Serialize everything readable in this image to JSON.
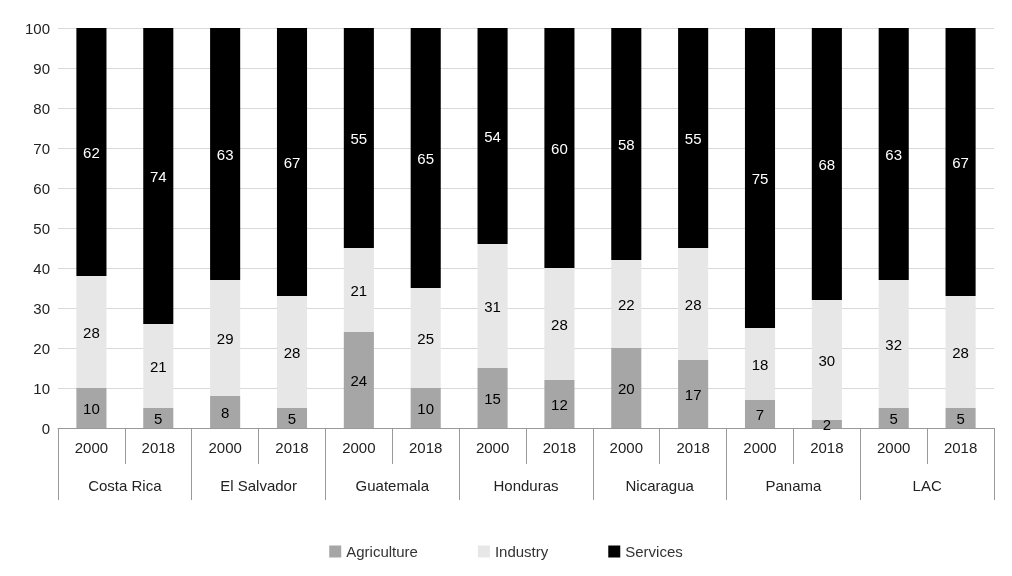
{
  "chart_data": {
    "type": "bar",
    "stacked": true,
    "categories": [
      "2000",
      "2018",
      "2000",
      "2018",
      "2000",
      "2018",
      "2000",
      "2018",
      "2000",
      "2018",
      "2000",
      "2018",
      "2000",
      "2018"
    ],
    "annotations": [
      "Costa Rica",
      "El Salvador",
      "Guatemala",
      "Honduras",
      "Nicaragua",
      "Panama",
      "LAC"
    ],
    "series": [
      {
        "name": "Agriculture",
        "color": "#a6a6a6",
        "values": [
          10,
          5,
          8,
          5,
          24,
          10,
          15,
          12,
          20,
          17,
          7,
          2,
          5,
          5
        ]
      },
      {
        "name": "Industry",
        "color": "#e7e7e7",
        "values": [
          28,
          21,
          29,
          28,
          21,
          25,
          31,
          28,
          22,
          28,
          18,
          30,
          32,
          28
        ]
      },
      {
        "name": "Services",
        "color": "#000000",
        "values": [
          62,
          74,
          63,
          67,
          55,
          65,
          54,
          60,
          58,
          55,
          75,
          68,
          63,
          67
        ]
      }
    ],
    "ylim": [
      0,
      100
    ],
    "yticks": [
      0,
      10,
      20,
      30,
      40,
      50,
      60,
      70,
      80,
      90,
      100
    ],
    "grid": "y",
    "legend": "bottom",
    "data_labels": true
  }
}
